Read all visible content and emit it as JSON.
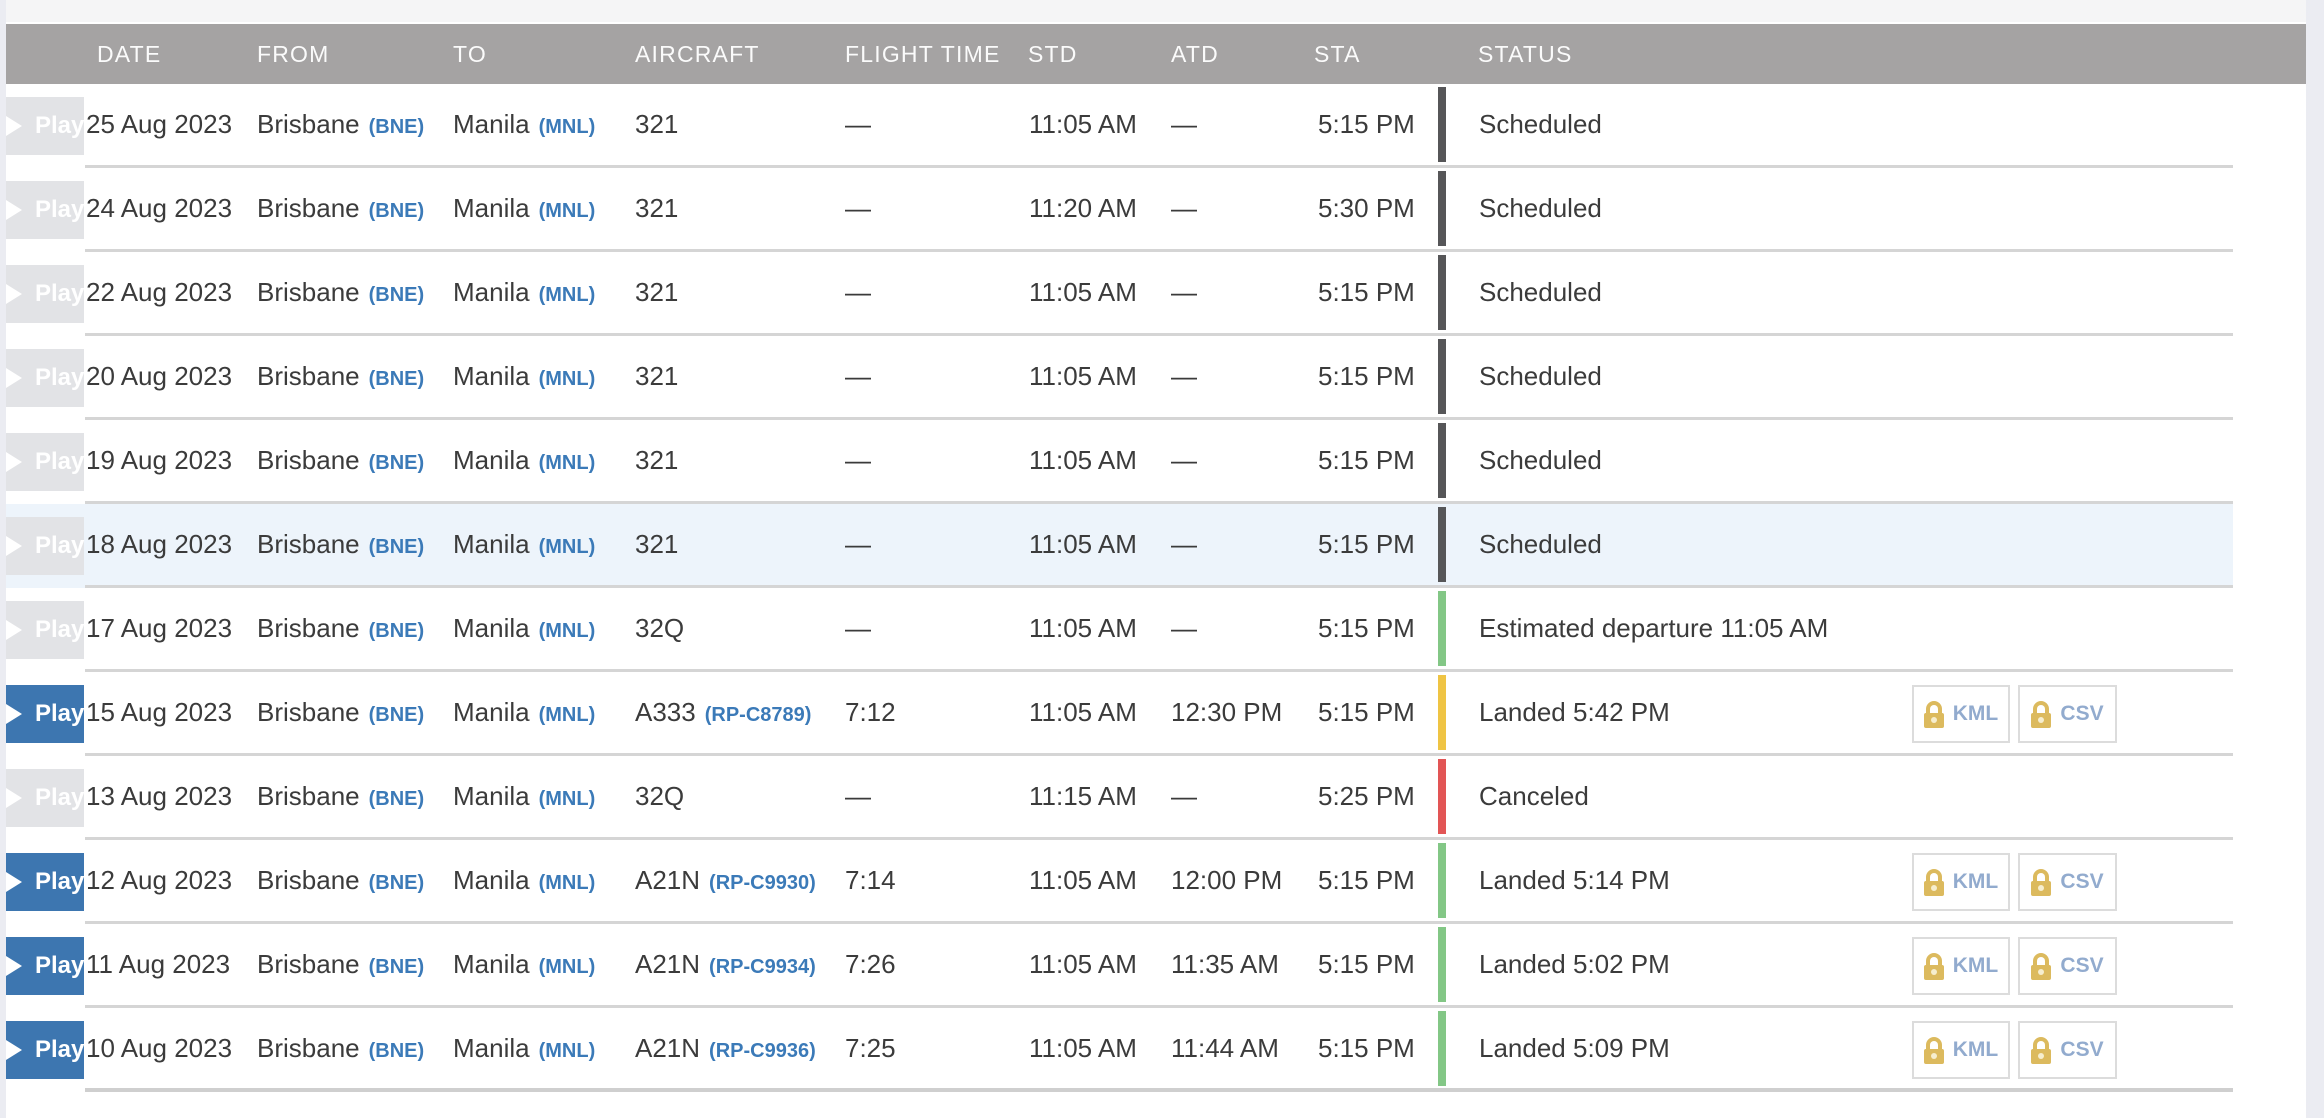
{
  "page": {
    "background": "#ebecf2",
    "content_background": "#ffffff",
    "top_strip_color": "#f5f5f6"
  },
  "colors": {
    "header_bg": "#a5a3a3",
    "header_text": "#fbfbfb",
    "row_text": "#3b3b3b",
    "link_blue": "#3b7ab8",
    "divider": "#d5d5d5",
    "row_highlight": "#edf4fb",
    "status_scheduled": "#565658",
    "status_green": "#83c786",
    "status_yellow": "#efc444",
    "status_red": "#e25555",
    "play_enabled_bg": "#3d76b0",
    "play_disabled_bg": "#e2e3e6",
    "download_label": "#92abce",
    "lock_gold": "#dcba5e"
  },
  "table": {
    "columns": [
      "DATE",
      "FROM",
      "TO",
      "AIRCRAFT",
      "FLIGHT TIME",
      "STD",
      "ATD",
      "STA",
      "STATUS"
    ],
    "buttons": {
      "kml_label": "KML",
      "csv_label": "CSV",
      "play_label": "Play"
    },
    "rows": [
      {
        "date": "25 Aug 2023",
        "from_city": "Brisbane",
        "from_code": "(BNE)",
        "to_city": "Manila",
        "to_code": "(MNL)",
        "aircraft": "321",
        "registration": "",
        "flight_time": "—",
        "std": "11:05 AM",
        "atd": "—",
        "sta": "5:15 PM",
        "status": "Scheduled",
        "status_color": "scheduled",
        "highlighted": false,
        "has_downloads": false,
        "play_enabled": false
      },
      {
        "date": "24 Aug 2023",
        "from_city": "Brisbane",
        "from_code": "(BNE)",
        "to_city": "Manila",
        "to_code": "(MNL)",
        "aircraft": "321",
        "registration": "",
        "flight_time": "—",
        "std": "11:20 AM",
        "atd": "—",
        "sta": "5:30 PM",
        "status": "Scheduled",
        "status_color": "scheduled",
        "highlighted": false,
        "has_downloads": false,
        "play_enabled": false
      },
      {
        "date": "22 Aug 2023",
        "from_city": "Brisbane",
        "from_code": "(BNE)",
        "to_city": "Manila",
        "to_code": "(MNL)",
        "aircraft": "321",
        "registration": "",
        "flight_time": "—",
        "std": "11:05 AM",
        "atd": "—",
        "sta": "5:15 PM",
        "status": "Scheduled",
        "status_color": "scheduled",
        "highlighted": false,
        "has_downloads": false,
        "play_enabled": false
      },
      {
        "date": "20 Aug 2023",
        "from_city": "Brisbane",
        "from_code": "(BNE)",
        "to_city": "Manila",
        "to_code": "(MNL)",
        "aircraft": "321",
        "registration": "",
        "flight_time": "—",
        "std": "11:05 AM",
        "atd": "—",
        "sta": "5:15 PM",
        "status": "Scheduled",
        "status_color": "scheduled",
        "highlighted": false,
        "has_downloads": false,
        "play_enabled": false
      },
      {
        "date": "19 Aug 2023",
        "from_city": "Brisbane",
        "from_code": "(BNE)",
        "to_city": "Manila",
        "to_code": "(MNL)",
        "aircraft": "321",
        "registration": "",
        "flight_time": "—",
        "std": "11:05 AM",
        "atd": "—",
        "sta": "5:15 PM",
        "status": "Scheduled",
        "status_color": "scheduled",
        "highlighted": false,
        "has_downloads": false,
        "play_enabled": false
      },
      {
        "date": "18 Aug 2023",
        "from_city": "Brisbane",
        "from_code": "(BNE)",
        "to_city": "Manila",
        "to_code": "(MNL)",
        "aircraft": "321",
        "registration": "",
        "flight_time": "—",
        "std": "11:05 AM",
        "atd": "—",
        "sta": "5:15 PM",
        "status": "Scheduled",
        "status_color": "scheduled",
        "highlighted": true,
        "has_downloads": false,
        "play_enabled": false
      },
      {
        "date": "17 Aug 2023",
        "from_city": "Brisbane",
        "from_code": "(BNE)",
        "to_city": "Manila",
        "to_code": "(MNL)",
        "aircraft": "32Q",
        "registration": "",
        "flight_time": "—",
        "std": "11:05 AM",
        "atd": "—",
        "sta": "5:15 PM",
        "status": "Estimated departure 11:05 AM",
        "status_color": "green",
        "highlighted": false,
        "has_downloads": false,
        "play_enabled": false
      },
      {
        "date": "15 Aug 2023",
        "from_city": "Brisbane",
        "from_code": "(BNE)",
        "to_city": "Manila",
        "to_code": "(MNL)",
        "aircraft": "A333",
        "registration": "(RP-C8789)",
        "flight_time": "7:12",
        "std": "11:05 AM",
        "atd": "12:30 PM",
        "sta": "5:15 PM",
        "status": "Landed 5:42 PM",
        "status_color": "yellow",
        "highlighted": false,
        "has_downloads": true,
        "play_enabled": true
      },
      {
        "date": "13 Aug 2023",
        "from_city": "Brisbane",
        "from_code": "(BNE)",
        "to_city": "Manila",
        "to_code": "(MNL)",
        "aircraft": "32Q",
        "registration": "",
        "flight_time": "—",
        "std": "11:15 AM",
        "atd": "—",
        "sta": "5:25 PM",
        "status": "Canceled",
        "status_color": "red",
        "highlighted": false,
        "has_downloads": false,
        "play_enabled": false
      },
      {
        "date": "12 Aug 2023",
        "from_city": "Brisbane",
        "from_code": "(BNE)",
        "to_city": "Manila",
        "to_code": "(MNL)",
        "aircraft": "A21N",
        "registration": "(RP-C9930)",
        "flight_time": "7:14",
        "std": "11:05 AM",
        "atd": "12:00 PM",
        "sta": "5:15 PM",
        "status": "Landed 5:14 PM",
        "status_color": "green",
        "highlighted": false,
        "has_downloads": true,
        "play_enabled": true
      },
      {
        "date": "11 Aug 2023",
        "from_city": "Brisbane",
        "from_code": "(BNE)",
        "to_city": "Manila",
        "to_code": "(MNL)",
        "aircraft": "A21N",
        "registration": "(RP-C9934)",
        "flight_time": "7:26",
        "std": "11:05 AM",
        "atd": "11:35 AM",
        "sta": "5:15 PM",
        "status": "Landed 5:02 PM",
        "status_color": "green",
        "highlighted": false,
        "has_downloads": true,
        "play_enabled": true
      },
      {
        "date": "10 Aug 2023",
        "from_city": "Brisbane",
        "from_code": "(BNE)",
        "to_city": "Manila",
        "to_code": "(MNL)",
        "aircraft": "A21N",
        "registration": "(RP-C9936)",
        "flight_time": "7:25",
        "std": "11:05 AM",
        "atd": "11:44 AM",
        "sta": "5:15 PM",
        "status": "Landed 5:09 PM",
        "status_color": "green",
        "highlighted": false,
        "has_downloads": true,
        "play_enabled": true
      }
    ]
  }
}
